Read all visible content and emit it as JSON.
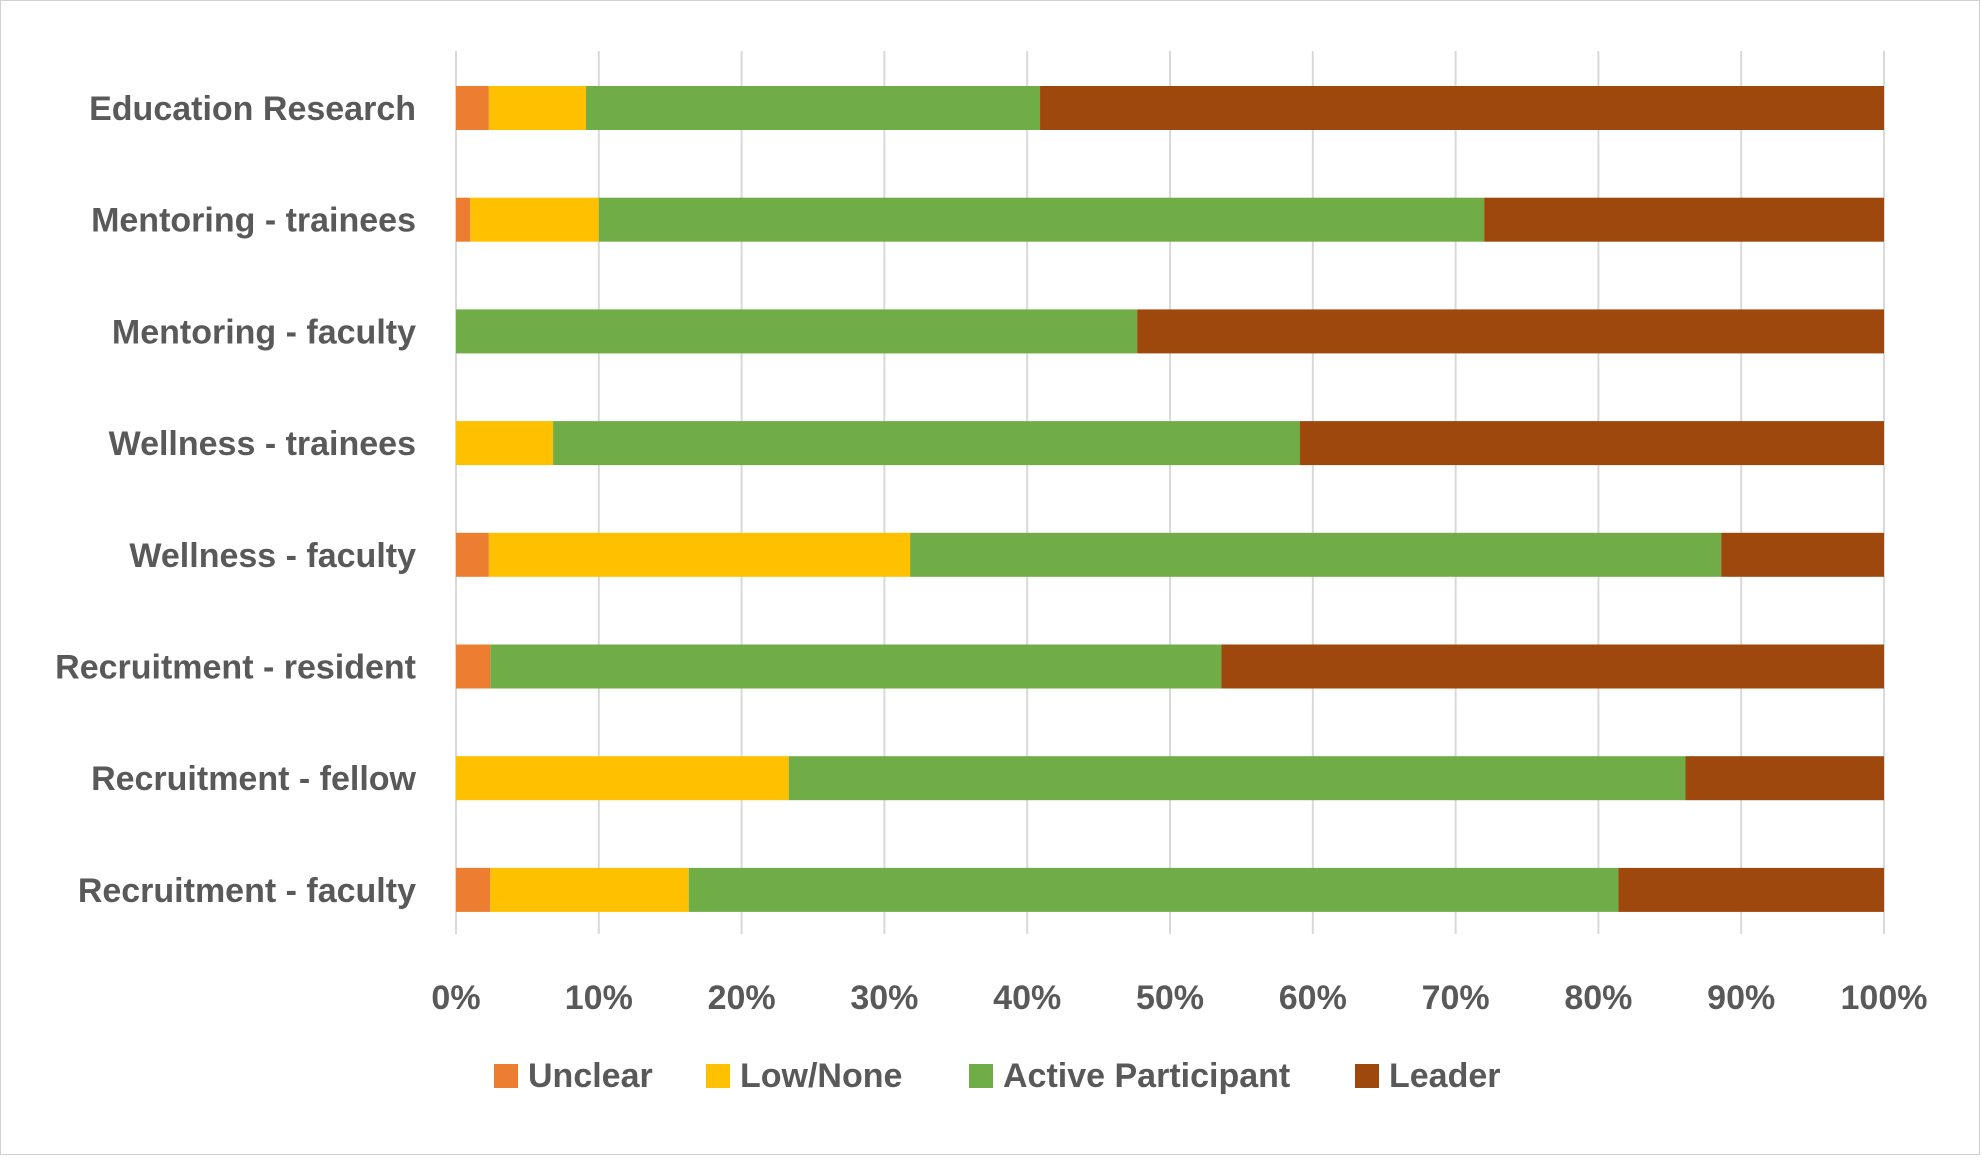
{
  "chart_data": {
    "type": "bar",
    "orientation": "horizontal",
    "stacked": "100%",
    "title": "",
    "xlabel": "",
    "ylabel": "",
    "xlim": [
      0,
      100
    ],
    "x_tick_labels": [
      "0%",
      "10%",
      "20%",
      "30%",
      "40%",
      "50%",
      "60%",
      "70%",
      "80%",
      "90%",
      "100%"
    ],
    "grid": "vertical gridlines on",
    "legend_position": "bottom",
    "categories": [
      "Education Research",
      "Mentoring - trainees",
      "Mentoring - faculty",
      "Wellness - trainees",
      "Wellness - faculty",
      "Recruitment - resident",
      "Recruitment - fellow",
      "Recruitment - faculty"
    ],
    "series": [
      {
        "name": "Unclear",
        "color": "#ED7D31",
        "values": [
          2.3,
          1.0,
          0,
          0,
          2.3,
          2.4,
          0,
          2.4
        ]
      },
      {
        "name": "Low/None",
        "color": "#FFC000",
        "values": [
          6.8,
          9.0,
          0,
          6.8,
          29.5,
          0,
          23.3,
          13.9
        ]
      },
      {
        "name": "Active Participant",
        "color": "#70AD47",
        "values": [
          31.8,
          62.0,
          47.7,
          52.3,
          56.8,
          51.2,
          62.8,
          65.1
        ]
      },
      {
        "name": "Leader",
        "color": "#9E480E",
        "values": [
          59.1,
          28.0,
          52.3,
          40.9,
          11.4,
          46.4,
          13.9,
          18.6
        ]
      }
    ]
  }
}
